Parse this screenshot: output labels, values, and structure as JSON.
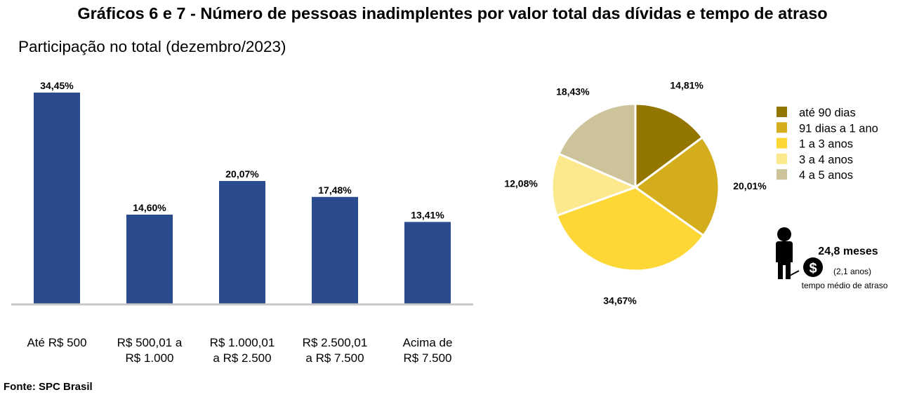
{
  "title": "Gráficos 6 e 7 - Número de pessoas inadimplentes por valor total das dívidas e tempo de atraso",
  "subtitle": "Participação no total (dezembro/2023)",
  "source": "Fonte: SPC Brasil",
  "colors": {
    "bar": "#2a4b8d",
    "axis": "#c8c8c8",
    "pie_slice_border": "#ffffff"
  },
  "chart_data": [
    {
      "type": "bar",
      "categories": [
        [
          "Até R$ 500"
        ],
        [
          "R$ 500,01 a",
          "R$ 1.000"
        ],
        [
          "R$ 1.000,01",
          "a R$ 2.500"
        ],
        [
          "R$ 2.500,01",
          "a R$ 7.500"
        ],
        [
          "Acima de",
          "R$ 7.500"
        ]
      ],
      "values": [
        34.45,
        14.6,
        20.07,
        17.48,
        13.41
      ],
      "data_labels": [
        "34,45%",
        "14,60%",
        "20,07%",
        "17,48%",
        "13,41%"
      ],
      "ylim": [
        0,
        36.5
      ],
      "grid": false,
      "legend": "none"
    },
    {
      "type": "pie",
      "categories": [
        "até 90 dias",
        "91 dias a 1 ano",
        "1 a 3 anos",
        "3 a 4 anos",
        "4 a 5 anos"
      ],
      "values": [
        14.81,
        20.01,
        34.67,
        12.08,
        18.43
      ],
      "data_labels": [
        "14,81%",
        "20,01%",
        "34,67%",
        "12,08%",
        "18,43%"
      ],
      "colors": [
        "#937502",
        "#d3ad1b",
        "#fdd735",
        "#fde98d",
        "#ccc39a"
      ],
      "legend": "right"
    }
  ],
  "info": {
    "headline": "24,8 meses",
    "detail": "(2,1 anos)",
    "caption": "tempo médio de atraso",
    "icons": [
      "person-icon",
      "dollar-coin-icon"
    ]
  }
}
